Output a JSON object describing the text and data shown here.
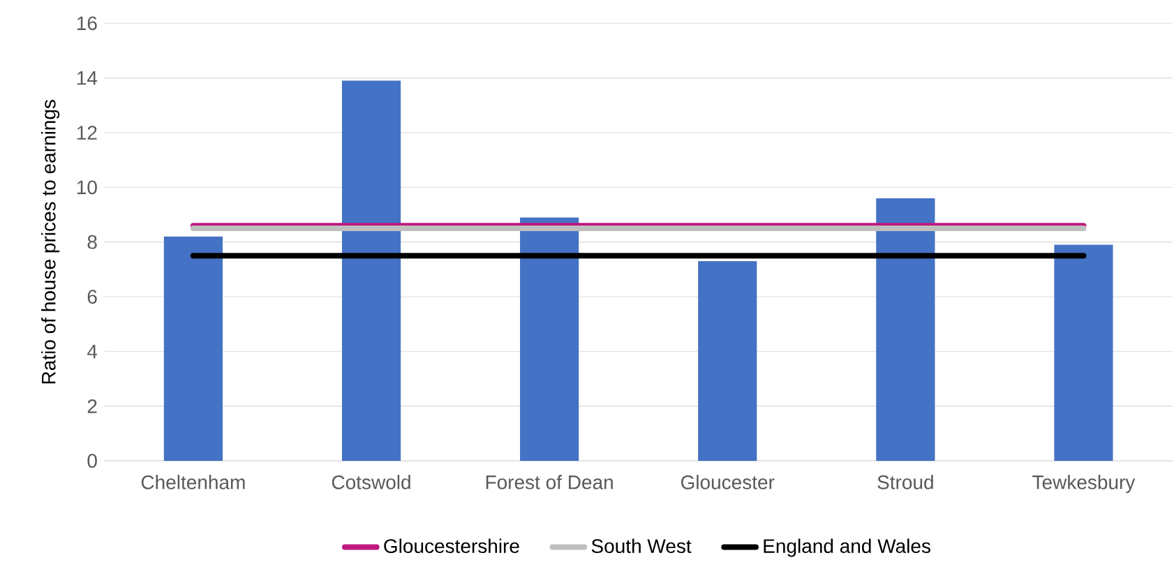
{
  "chart_data": {
    "type": "bar",
    "ylabel": "Ratio of house prices to earnings",
    "categories": [
      "Cheltenham",
      "Cotswold",
      "Forest of Dean",
      "Gloucester",
      "Stroud",
      "Tewkesbury"
    ],
    "series": [
      {
        "color": "#4472c4",
        "values": [
          8.2,
          13.9,
          8.9,
          7.3,
          9.6,
          7.9
        ]
      },
      {
        "type": "line",
        "name": "Gloucestershire",
        "color": "#c0187f",
        "values": [
          8.6,
          8.6,
          8.6,
          8.6,
          8.6,
          8.6
        ]
      },
      {
        "type": "line",
        "name": "South West",
        "color": "#bfbfbf",
        "values": [
          8.5,
          8.5,
          8.5,
          8.5,
          8.5,
          8.5
        ]
      },
      {
        "type": "line",
        "name": "England and Wales",
        "color": "#000000",
        "values": [
          7.5,
          7.5,
          7.5,
          7.5,
          7.5,
          7.5
        ]
      }
    ],
    "ylim": [
      0,
      16
    ],
    "yticks": [
      0,
      2,
      4,
      6,
      8,
      10,
      12,
      14,
      16
    ],
    "grid": "y",
    "legend": "bottom"
  }
}
